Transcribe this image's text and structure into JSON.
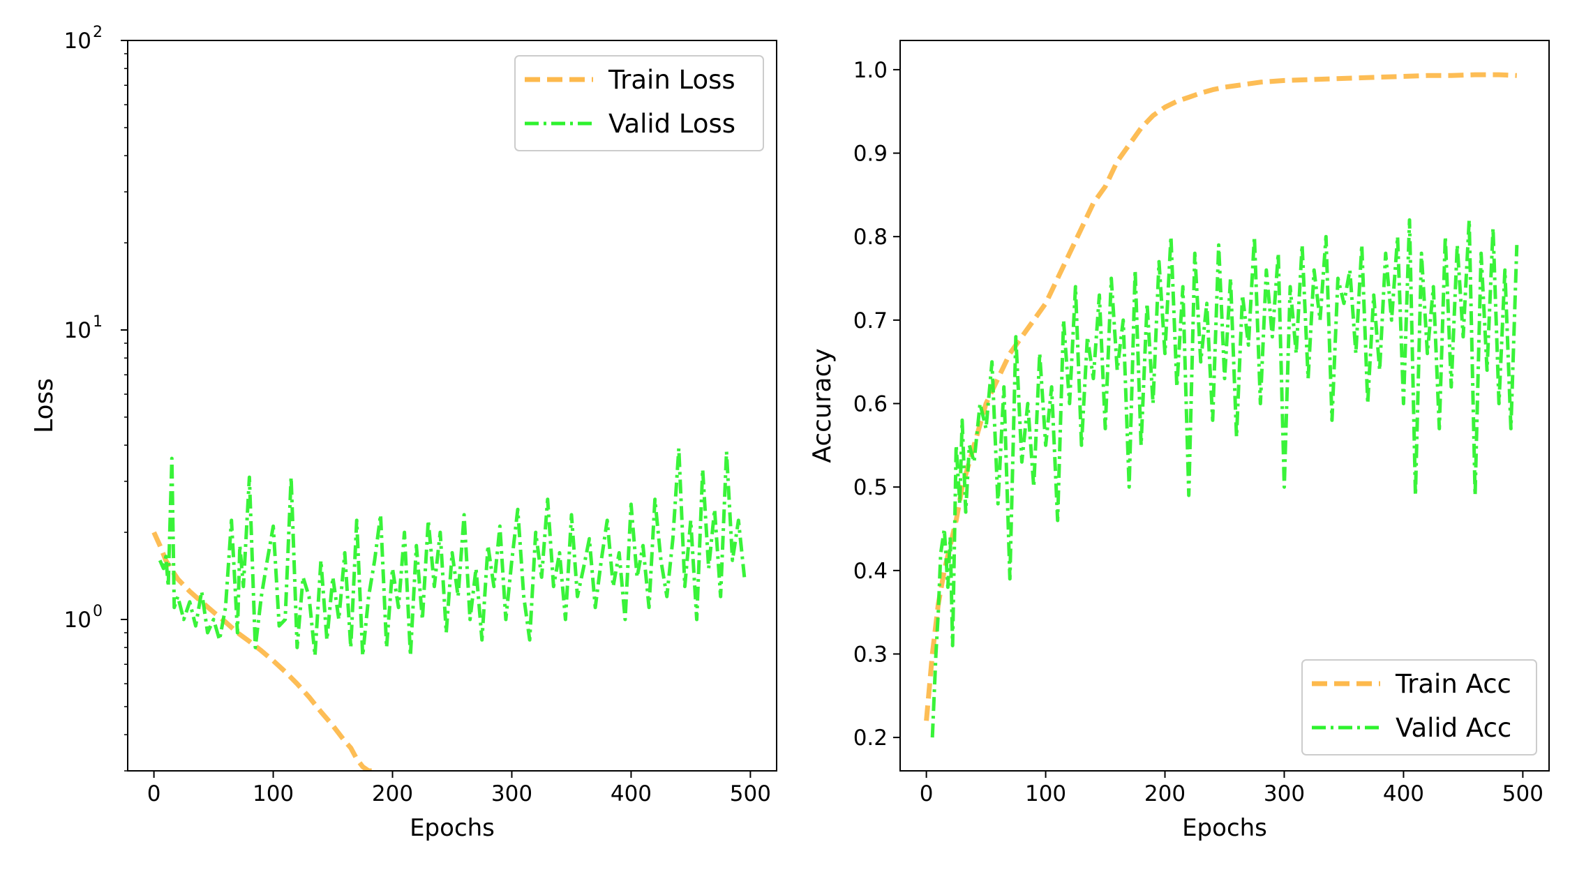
{
  "chart_data": [
    {
      "type": "line",
      "xlabel": "Epochs",
      "ylabel": "Loss",
      "xlim": [
        -22,
        522
      ],
      "xticks": [
        0,
        100,
        200,
        300,
        400,
        500
      ],
      "xtick_labels": [
        "0",
        "100",
        "200",
        "300",
        "400",
        "500"
      ],
      "ylim": [
        0.3,
        100
      ],
      "yscale": "log",
      "yticks": [
        1,
        10,
        100
      ],
      "ytick_labels": [
        "10",
        "10",
        "10"
      ],
      "ytick_exponents": [
        "0",
        "1",
        "2"
      ],
      "legend_position": "upper right",
      "series": [
        {
          "name": "Train Loss",
          "color": "#fdb94c",
          "style": "dashed",
          "x": [
            0,
            5,
            10,
            15,
            20,
            30,
            40,
            50,
            60,
            70,
            80,
            90,
            100,
            110,
            120,
            130,
            140,
            150,
            160,
            165,
            170,
            175,
            180,
            185
          ],
          "y": [
            2.0,
            1.8,
            1.6,
            1.48,
            1.38,
            1.25,
            1.15,
            1.06,
            0.98,
            0.9,
            0.84,
            0.78,
            0.72,
            0.66,
            0.6,
            0.54,
            0.48,
            0.43,
            0.38,
            0.36,
            0.33,
            0.31,
            0.3,
            0.3
          ]
        },
        {
          "name": "Valid Loss",
          "color": "#2ef22e",
          "style": "dashdot",
          "x": [
            5,
            8,
            10,
            12,
            15,
            17,
            20,
            25,
            30,
            35,
            40,
            45,
            50,
            55,
            60,
            65,
            68,
            70,
            72,
            75,
            80,
            85,
            90,
            95,
            100,
            105,
            110,
            115,
            120,
            125,
            130,
            135,
            140,
            145,
            150,
            155,
            160,
            165,
            170,
            175,
            180,
            185,
            190,
            195,
            200,
            205,
            210,
            215,
            220,
            225,
            230,
            235,
            240,
            245,
            250,
            255,
            260,
            265,
            270,
            275,
            280,
            285,
            290,
            295,
            300,
            305,
            310,
            315,
            320,
            325,
            330,
            335,
            340,
            345,
            350,
            355,
            360,
            365,
            370,
            375,
            380,
            385,
            390,
            395,
            400,
            405,
            410,
            415,
            420,
            425,
            430,
            435,
            440,
            445,
            450,
            455,
            460,
            465,
            470,
            475,
            480,
            485,
            490,
            495
          ],
          "y": [
            1.6,
            1.5,
            1.65,
            1.3,
            3.6,
            1.1,
            1.2,
            1.0,
            1.15,
            0.95,
            1.25,
            0.9,
            1.0,
            0.85,
            1.1,
            2.2,
            1.3,
            0.9,
            1.8,
            1.3,
            3.1,
            0.8,
            1.2,
            1.6,
            2.1,
            0.95,
            1.0,
            3.1,
            0.8,
            1.4,
            1.2,
            0.75,
            1.6,
            0.85,
            1.4,
            1.0,
            1.7,
            0.8,
            2.2,
            0.75,
            1.2,
            1.6,
            2.3,
            0.8,
            1.5,
            1.1,
            2.0,
            0.75,
            1.8,
            1.0,
            2.2,
            1.3,
            2.0,
            0.9,
            1.7,
            1.2,
            2.3,
            1.0,
            1.5,
            0.85,
            1.8,
            1.3,
            2.1,
            1.0,
            1.6,
            2.4,
            1.2,
            0.85,
            2.0,
            1.4,
            2.6,
            1.3,
            1.7,
            1.0,
            2.3,
            1.2,
            1.5,
            1.9,
            1.1,
            1.6,
            2.2,
            1.3,
            1.7,
            1.0,
            2.5,
            1.4,
            1.8,
            1.1,
            2.6,
            1.6,
            1.2,
            1.9,
            3.9,
            1.3,
            2.2,
            1.0,
            3.3,
            1.5,
            2.4,
            1.2,
            3.8,
            1.6,
            2.2,
            1.4
          ]
        }
      ]
    },
    {
      "type": "line",
      "xlabel": "Epochs",
      "ylabel": "Accuracy",
      "xlim": [
        -22,
        522
      ],
      "xticks": [
        0,
        100,
        200,
        300,
        400,
        500
      ],
      "xtick_labels": [
        "0",
        "100",
        "200",
        "300",
        "400",
        "500"
      ],
      "ylim": [
        0.16,
        1.035
      ],
      "yscale": "linear",
      "yticks": [
        0.2,
        0.3,
        0.4,
        0.5,
        0.6,
        0.7,
        0.8,
        0.9,
        1.0
      ],
      "ytick_labels": [
        "0.2",
        "0.3",
        "0.4",
        "0.5",
        "0.6",
        "0.7",
        "0.8",
        "0.9",
        "1.0"
      ],
      "legend_position": "lower right",
      "series": [
        {
          "name": "Train Acc",
          "color": "#fdb94c",
          "style": "dashed",
          "x": [
            0,
            5,
            10,
            15,
            20,
            25,
            30,
            40,
            50,
            60,
            70,
            80,
            90,
            100,
            110,
            120,
            130,
            140,
            150,
            160,
            170,
            180,
            190,
            200,
            210,
            220,
            230,
            240,
            250,
            260,
            270,
            280,
            290,
            300,
            320,
            340,
            360,
            380,
            400,
            420,
            440,
            460,
            480,
            495
          ],
          "y": [
            0.22,
            0.3,
            0.36,
            0.4,
            0.43,
            0.46,
            0.5,
            0.55,
            0.6,
            0.63,
            0.66,
            0.68,
            0.7,
            0.72,
            0.75,
            0.78,
            0.81,
            0.84,
            0.86,
            0.89,
            0.91,
            0.93,
            0.945,
            0.955,
            0.962,
            0.967,
            0.972,
            0.976,
            0.979,
            0.981,
            0.983,
            0.985,
            0.986,
            0.987,
            0.988,
            0.989,
            0.99,
            0.991,
            0.992,
            0.993,
            0.993,
            0.994,
            0.994,
            0.993
          ]
        },
        {
          "name": "Valid Acc",
          "color": "#2ef22e",
          "style": "dashdot",
          "x": [
            5,
            8,
            10,
            12,
            15,
            18,
            20,
            22,
            25,
            28,
            30,
            33,
            36,
            40,
            45,
            50,
            55,
            60,
            65,
            70,
            75,
            80,
            85,
            90,
            95,
            100,
            105,
            110,
            115,
            120,
            125,
            130,
            135,
            140,
            145,
            150,
            155,
            160,
            165,
            170,
            175,
            180,
            185,
            190,
            195,
            200,
            205,
            210,
            215,
            220,
            225,
            230,
            235,
            240,
            245,
            250,
            255,
            260,
            265,
            270,
            275,
            280,
            285,
            290,
            295,
            300,
            305,
            310,
            315,
            320,
            325,
            330,
            335,
            340,
            345,
            350,
            355,
            360,
            365,
            370,
            375,
            380,
            385,
            390,
            395,
            400,
            405,
            410,
            415,
            420,
            425,
            430,
            435,
            440,
            445,
            450,
            455,
            460,
            465,
            470,
            475,
            480,
            485,
            490,
            495
          ],
          "y": [
            0.2,
            0.3,
            0.35,
            0.42,
            0.45,
            0.38,
            0.44,
            0.31,
            0.55,
            0.48,
            0.58,
            0.47,
            0.55,
            0.53,
            0.6,
            0.57,
            0.65,
            0.48,
            0.62,
            0.39,
            0.68,
            0.53,
            0.6,
            0.5,
            0.66,
            0.55,
            0.62,
            0.46,
            0.7,
            0.6,
            0.74,
            0.55,
            0.68,
            0.63,
            0.73,
            0.57,
            0.75,
            0.64,
            0.7,
            0.5,
            0.76,
            0.55,
            0.72,
            0.6,
            0.77,
            0.66,
            0.8,
            0.62,
            0.74,
            0.49,
            0.78,
            0.65,
            0.72,
            0.58,
            0.79,
            0.63,
            0.75,
            0.56,
            0.73,
            0.67,
            0.8,
            0.6,
            0.76,
            0.68,
            0.78,
            0.5,
            0.74,
            0.66,
            0.79,
            0.63,
            0.76,
            0.7,
            0.8,
            0.58,
            0.75,
            0.72,
            0.76,
            0.66,
            0.79,
            0.6,
            0.73,
            0.64,
            0.78,
            0.7,
            0.8,
            0.6,
            0.82,
            0.49,
            0.78,
            0.66,
            0.74,
            0.57,
            0.8,
            0.62,
            0.79,
            0.68,
            0.82,
            0.49,
            0.78,
            0.64,
            0.81,
            0.6,
            0.76,
            0.57,
            0.79
          ]
        }
      ]
    }
  ]
}
